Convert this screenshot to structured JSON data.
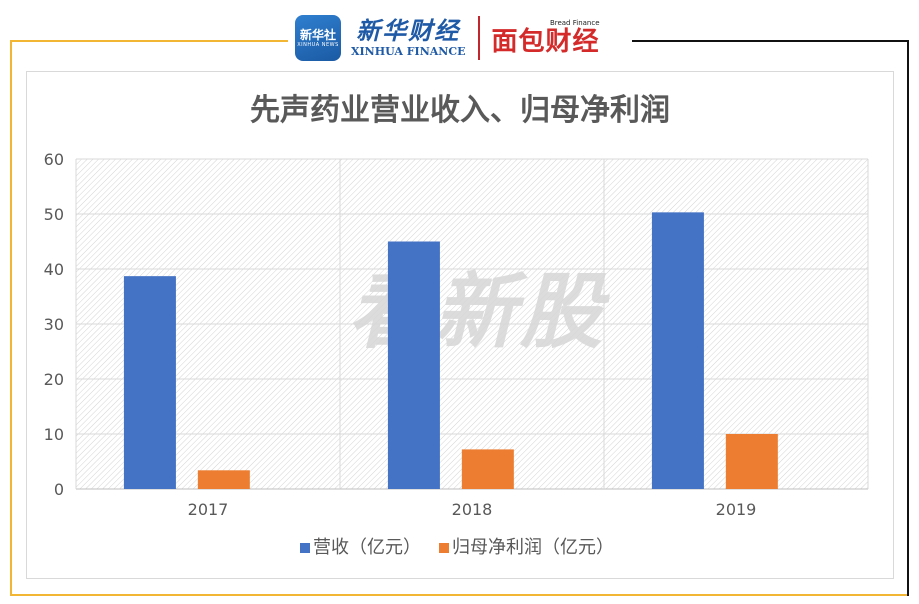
{
  "header": {
    "xinhua_badge": "新华社",
    "xinhua_badge_sub": "XINHUA NEWS",
    "xinhua_finance_cn": "新华财经",
    "xinhua_finance_en": "XINHUA FINANCE",
    "bread_finance_en": "Bread Finance",
    "bread_finance_cn": "面包财经"
  },
  "colors": {
    "series1": "#4472c4",
    "series2": "#ed7d31",
    "frame_accent": "#f2b534",
    "frame_dark": "#111111"
  },
  "watermark": "看新股",
  "chart_data": {
    "type": "bar",
    "title": "先声药业营业收入、归母净利润",
    "categories": [
      "2017",
      "2018",
      "2019"
    ],
    "series": [
      {
        "name": "营收（亿元）",
        "values": [
          38.7,
          45.0,
          50.3
        ]
      },
      {
        "name": "归母净利润（亿元）",
        "values": [
          3.4,
          7.2,
          10.0
        ]
      }
    ],
    "ylim": [
      0,
      60
    ],
    "yticks": [
      0,
      10,
      20,
      30,
      40,
      50,
      60
    ],
    "xlabel": "",
    "ylabel": "",
    "grid": true,
    "legend": "bottom"
  }
}
